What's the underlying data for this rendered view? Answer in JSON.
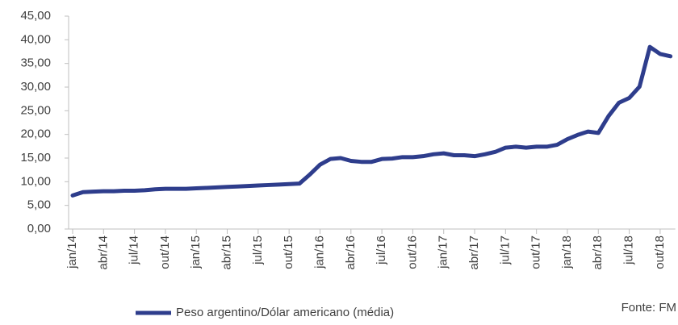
{
  "chart_data": {
    "type": "line",
    "categories": [
      "jan/14",
      null,
      null,
      "abr/14",
      null,
      null,
      "jul/14",
      null,
      null,
      "out/14",
      null,
      null,
      "jan/15",
      null,
      null,
      "abr/15",
      null,
      null,
      "jul/15",
      null,
      null,
      "out/15",
      null,
      null,
      "jan/16",
      null,
      null,
      "abr/16",
      null,
      null,
      "jul/16",
      null,
      null,
      "out/16",
      null,
      null,
      "jan/17",
      null,
      null,
      "abr/17",
      null,
      null,
      "jul/17",
      null,
      null,
      "out/17",
      null,
      null,
      "jan/18",
      null,
      null,
      "abr/18",
      null,
      null,
      "jul/18",
      null,
      null,
      "out/18",
      null
    ],
    "series": [
      {
        "name": "Peso argentino/Dólar americano (média)",
        "color": "#2e3d8c",
        "values": [
          7.1,
          7.8,
          7.9,
          8.0,
          8.0,
          8.1,
          8.1,
          8.2,
          8.4,
          8.5,
          8.5,
          8.5,
          8.6,
          8.7,
          8.8,
          8.9,
          9.0,
          9.1,
          9.2,
          9.3,
          9.4,
          9.5,
          9.6,
          11.5,
          13.6,
          14.8,
          15.0,
          14.4,
          14.2,
          14.2,
          14.8,
          14.9,
          15.2,
          15.2,
          15.4,
          15.8,
          16.0,
          15.6,
          15.6,
          15.4,
          15.8,
          16.3,
          17.2,
          17.4,
          17.2,
          17.4,
          17.4,
          17.8,
          19.0,
          19.9,
          20.6,
          20.3,
          23.9,
          26.7,
          27.7,
          30.1,
          38.5,
          37.0,
          36.5
        ]
      }
    ],
    "ylim": [
      0,
      45
    ],
    "yticks": [
      {
        "value": 0,
        "label": "0,00"
      },
      {
        "value": 5,
        "label": "5,00"
      },
      {
        "value": 10,
        "label": "10,00"
      },
      {
        "value": 15,
        "label": "15,00"
      },
      {
        "value": 20,
        "label": "20,00"
      },
      {
        "value": 25,
        "label": "25,00"
      },
      {
        "value": 30,
        "label": "30,00"
      },
      {
        "value": 35,
        "label": "35,00"
      },
      {
        "value": 40,
        "label": "40,00"
      },
      {
        "value": 45,
        "label": "45,00"
      }
    ],
    "source": "Fonte: FM"
  }
}
